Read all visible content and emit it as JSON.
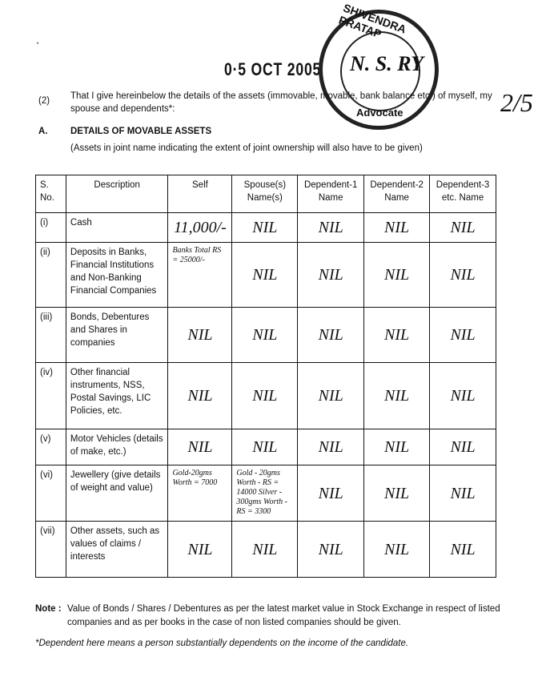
{
  "mark": "'",
  "date_stamp": "0·5 OCT 2005",
  "seal": {
    "top": "SHIVENDRA PRATAP",
    "bottom": "Advocate",
    "signature": "N. S. RY"
  },
  "page_number": "2/5",
  "para": {
    "num": "(2)",
    "text": "That I give hereinbelow the details of the assets (immovable, movable, bank balance etc.) of myself, my spouse and dependents*:"
  },
  "section": {
    "letter": "A.",
    "title": "DETAILS OF MOVABLE ASSETS",
    "subtitle": "(Assets in joint name indicating the extent of joint ownership will also have to be given)"
  },
  "table": {
    "headers": [
      "S. No.",
      "Description",
      "Self",
      "Spouse(s) Name(s)",
      "Dependent-1 Name",
      "Dependent-2 Name",
      "Dependent-3 etc. Name"
    ],
    "rows": [
      {
        "no": "(i)",
        "desc": "Cash",
        "self": "11,000/-",
        "spouse": "NIL",
        "d1": "NIL",
        "d2": "NIL",
        "d3": "NIL"
      },
      {
        "no": "(ii)",
        "desc": "Deposits in Banks, Financial Institutions and Non-Banking Financial Companies",
        "self": "Banks Total RS = 25000/-",
        "spouse": "NIL",
        "d1": "NIL",
        "d2": "NIL",
        "d3": "NIL"
      },
      {
        "no": "(iii)",
        "desc": "Bonds, Debentures and Shares in companies",
        "self": "NIL",
        "spouse": "NIL",
        "d1": "NIL",
        "d2": "NIL",
        "d3": "NIL"
      },
      {
        "no": "(iv)",
        "desc": "Other financial instruments, NSS, Postal Savings, LIC Policies, etc.",
        "self": "NIL",
        "spouse": "NIL",
        "d1": "NIL",
        "d2": "NIL",
        "d3": "NIL"
      },
      {
        "no": "(v)",
        "desc": "Motor Vehicles (details of make, etc.)",
        "self": "NIL",
        "spouse": "NIL",
        "d1": "NIL",
        "d2": "NIL",
        "d3": "NIL"
      },
      {
        "no": "(vi)",
        "desc": "Jewellery (give details of weight and value)",
        "self": "Gold-20gms Worth = 7000",
        "spouse": "Gold - 20gms Worth - RS = 14000 Silver - 300gms Worth - RS = 3300",
        "d1": "NIL",
        "d2": "NIL",
        "d3": "NIL"
      },
      {
        "no": "(vii)",
        "desc": "Other assets, such as values of claims / interests",
        "self": "NIL",
        "spouse": "NIL",
        "d1": "NIL",
        "d2": "NIL",
        "d3": "NIL"
      }
    ]
  },
  "note": {
    "label": "Note :",
    "text": "Value of Bonds / Shares / Debentures as per the latest market value in Stock Exchange in respect of listed companies and as per books in the case of non listed companies should be given."
  },
  "footnote": "*Dependent here means a person substantially dependents on the income of the candidate."
}
